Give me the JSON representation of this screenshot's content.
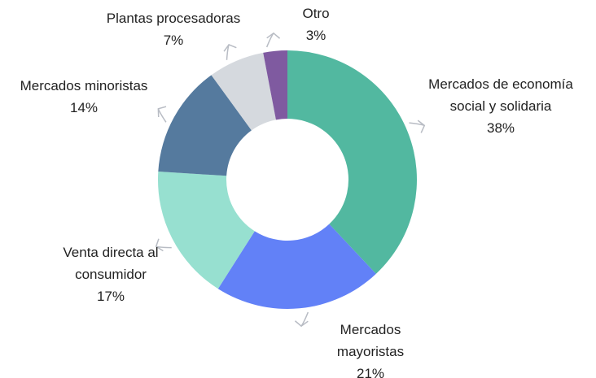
{
  "chart_data": {
    "type": "pie",
    "categories": [
      "Mercados de economía social y solidaria",
      "Mercados mayoristas",
      "Venta directa al consumidor",
      "Mercados minoristas",
      "Plantas procesadoras",
      "Otro"
    ],
    "values": [
      38,
      21,
      17,
      14,
      7,
      3
    ],
    "value_labels": [
      "38%",
      "21%",
      "17%",
      "14%",
      "7%",
      "3%"
    ],
    "colors": [
      "#52b8a0",
      "#6281f7",
      "#97e0d0",
      "#557a9e",
      "#d5d9de",
      "#7f5aa0"
    ]
  }
}
